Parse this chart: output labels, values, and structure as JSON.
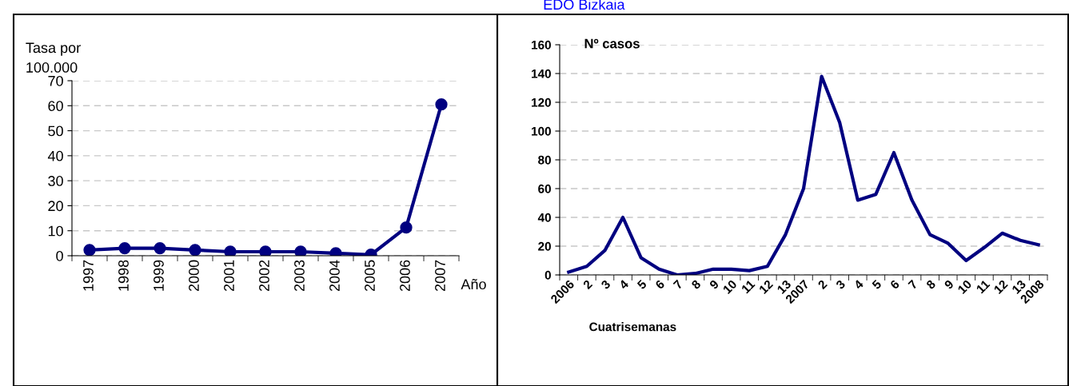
{
  "chart_data": [
    {
      "type": "line",
      "ylabel": "Tasa por 100.000",
      "xlabel": "Año",
      "categories": [
        "1997",
        "1998",
        "1999",
        "2000",
        "2001",
        "2002",
        "2003",
        "2004",
        "2005",
        "2006",
        "2007"
      ],
      "series": [
        {
          "color": "#000080",
          "values": [
            2.3,
            3,
            3,
            2.3,
            1.6,
            1.6,
            1.6,
            1,
            0.4,
            11.3,
            60.5
          ]
        }
      ],
      "ylim": [
        0,
        70
      ],
      "yticks": [
        0,
        10,
        20,
        30,
        40,
        50,
        60,
        70
      ],
      "grid": "y",
      "marker": "circle",
      "line_style": "solid",
      "legend": false
    },
    {
      "type": "line",
      "title": "EDO Bizkaia",
      "ylabel": "Nº casos",
      "xlabel": "Cuatrisemanas",
      "categories": [
        "2006",
        "2",
        "3",
        "4",
        "5",
        "6",
        "7",
        "8",
        "9",
        "10",
        "11",
        "12",
        "13",
        "2007",
        "2",
        "3",
        "4",
        "5",
        "6",
        "7",
        "8",
        "9",
        "10",
        "11",
        "12",
        "13",
        "2008"
      ],
      "series": [
        {
          "color": "#000080",
          "values": [
            2,
            6,
            17,
            40,
            12,
            4,
            0,
            1,
            4,
            4,
            3,
            6,
            28,
            60,
            138,
            106,
            52,
            56,
            85,
            52,
            28,
            22,
            10,
            19,
            29,
            24,
            21
          ]
        }
      ],
      "ylim": [
        0,
        160
      ],
      "yticks": [
        0,
        20,
        40,
        60,
        80,
        100,
        120,
        140,
        160
      ],
      "grid": "y",
      "marker": "none",
      "line_style": "solid",
      "legend": false
    }
  ]
}
